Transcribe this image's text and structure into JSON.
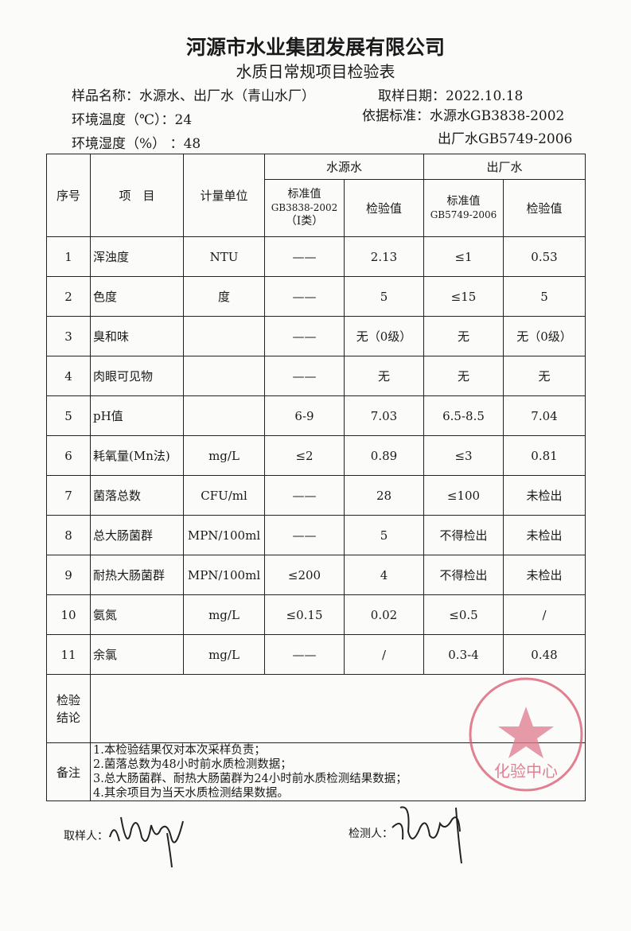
{
  "header": {
    "company": "河源市水业集团发展有限公司",
    "form_title": "水质日常规项目检验表"
  },
  "meta": {
    "sample_name_label": "样品名称：",
    "sample_name": "水源水、出厂水（青山水厂）",
    "sample_date_label": "取样日期：",
    "sample_date": "2022.10.18",
    "temp_label": "环境温度（℃）：",
    "temp": "24",
    "standard_label": "依据标准：",
    "standard_source": "水源水GB3838-2002",
    "humidity_label": "环境湿度（%）  ：",
    "humidity": "48",
    "standard_output": "出厂水GB5749-2006"
  },
  "table": {
    "headers": {
      "no": "序号",
      "item": "项　目",
      "unit": "计量单位",
      "source_water": "水源水",
      "output_water": "出厂水",
      "source_std_line1": "标准值",
      "source_std_line2": "GB3838-2002",
      "source_std_line3": "（Ⅰ类）",
      "source_value": "检验值",
      "output_std_line1": "标准值",
      "output_std_line2": "GB5749-2006",
      "output_value": "检验值"
    },
    "rows": [
      {
        "no": "1",
        "item": "浑浊度",
        "unit": "NTU",
        "src_std": "——",
        "src_val": "2.13",
        "out_std": "≤1",
        "out_val": "0.53"
      },
      {
        "no": "2",
        "item": "色度",
        "unit": "度",
        "src_std": "——",
        "src_val": "5",
        "out_std": "≤15",
        "out_val": "5"
      },
      {
        "no": "3",
        "item": "臭和味",
        "unit": "",
        "src_std": "——",
        "src_val": "无（0级）",
        "out_std": "无",
        "out_val": "无（0级）"
      },
      {
        "no": "4",
        "item": "肉眼可见物",
        "unit": "",
        "src_std": "——",
        "src_val": "无",
        "out_std": "无",
        "out_val": "无"
      },
      {
        "no": "5",
        "item": "pH值",
        "unit": "",
        "src_std": "6-9",
        "src_val": "7.03",
        "out_std": "6.5-8.5",
        "out_val": "7.04"
      },
      {
        "no": "6",
        "item": "耗氧量(Mn法)",
        "unit": "mg/L",
        "src_std": "≤2",
        "src_val": "0.89",
        "out_std": "≤3",
        "out_val": "0.81"
      },
      {
        "no": "7",
        "item": "菌落总数",
        "unit": "CFU/ml",
        "src_std": "——",
        "src_val": "28",
        "out_std": "≤100",
        "out_val": "未检出"
      },
      {
        "no": "8",
        "item": "总大肠菌群",
        "unit": "MPN/100ml",
        "src_std": "——",
        "src_val": "5",
        "out_std": "不得检出",
        "out_val": "未检出"
      },
      {
        "no": "9",
        "item": "耐热大肠菌群",
        "unit": "MPN/100ml",
        "src_std": "≤200",
        "src_val": "4",
        "out_std": "不得检出",
        "out_val": "未检出"
      },
      {
        "no": "10",
        "item": "氨氮",
        "unit": "mg/L",
        "src_std": "≤0.15",
        "src_val": "0.02",
        "out_std": "≤0.5",
        "out_val": "/"
      },
      {
        "no": "11",
        "item": "余氯",
        "unit": "mg/L",
        "src_std": "——",
        "src_val": "/",
        "out_std": "0.3-4",
        "out_val": "0.48"
      }
    ],
    "conclusion_label": "检验结论",
    "conclusion": "",
    "notes_label": "备注",
    "notes": [
      "1.本检验结果仅对本次采样负责；",
      "2.菌落总数为48小时前水质检测数据；",
      "3.总大肠菌群、耐热大肠菌群为24小时前水质检测结果数据；",
      "4.其余项目为当天水质检测结果数据。"
    ]
  },
  "footer": {
    "sampler_label": "取样人：",
    "tester_label": "检测人："
  },
  "stamp": {
    "text_ring": "河源市水业集团发展有限公司",
    "text_center": "化验中心",
    "color": "#d9576f"
  }
}
